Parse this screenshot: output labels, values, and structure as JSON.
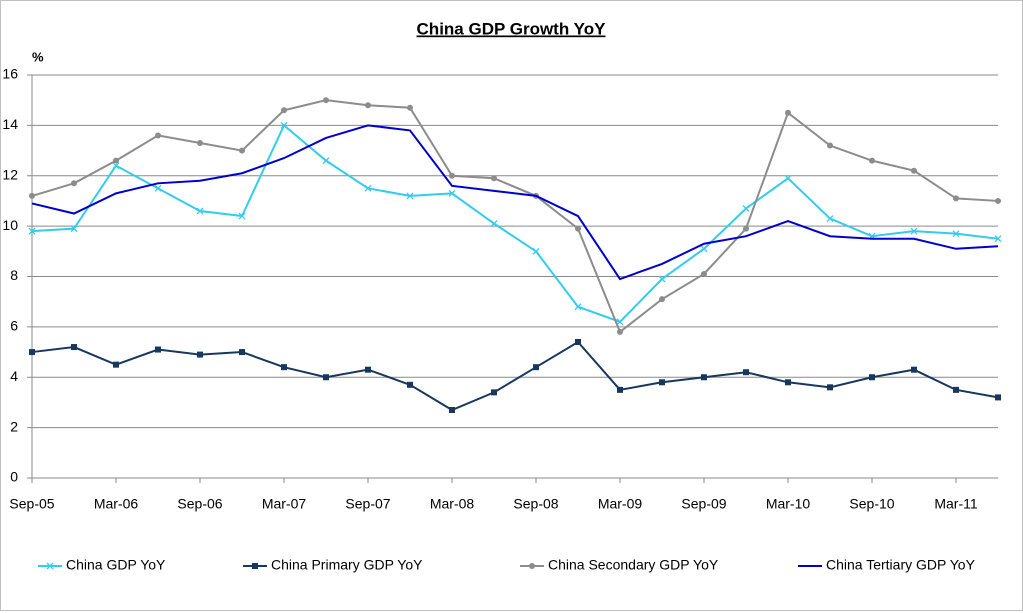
{
  "chart_data": {
    "type": "line",
    "title": "China GDP Growth YoY",
    "y_axis_label": "%",
    "categories": [
      "Sep-05",
      null,
      "Mar-06",
      null,
      "Sep-06",
      null,
      "Mar-07",
      null,
      "Sep-07",
      null,
      "Mar-08",
      null,
      "Sep-08",
      null,
      "Mar-09",
      null,
      "Sep-09",
      null,
      "Mar-10",
      null,
      "Sep-10",
      null,
      "Mar-11",
      null
    ],
    "series": [
      {
        "name": "China GDP YoY",
        "color": "#33ccee",
        "marker": "x",
        "values": [
          9.8,
          9.9,
          12.4,
          11.5,
          10.6,
          10.4,
          14.0,
          12.6,
          11.5,
          11.2,
          11.3,
          10.1,
          9.0,
          6.8,
          6.2,
          7.9,
          9.1,
          10.7,
          11.9,
          10.3,
          9.6,
          9.8,
          9.7,
          9.5
        ]
      },
      {
        "name": "China Primary GDP YoY",
        "color": "#17375e",
        "marker": "square",
        "values": [
          5.0,
          5.2,
          4.5,
          5.1,
          4.9,
          5.0,
          4.4,
          4.0,
          4.3,
          3.7,
          2.7,
          3.4,
          4.4,
          5.4,
          3.5,
          3.8,
          4.0,
          4.2,
          3.8,
          3.6,
          4.0,
          4.3,
          3.5,
          3.2
        ]
      },
      {
        "name": "China Secondary GDP YoY",
        "color": "#8c8c8c",
        "marker": "circle",
        "values": [
          11.2,
          11.7,
          12.6,
          13.6,
          13.3,
          13.0,
          14.6,
          15.0,
          14.8,
          14.7,
          12.0,
          11.9,
          11.2,
          9.9,
          5.8,
          7.1,
          8.1,
          9.9,
          14.5,
          13.2,
          12.6,
          12.2,
          11.1,
          11.0
        ]
      },
      {
        "name": "China Tertiary GDP YoY",
        "color": "#0000cc",
        "marker": "none",
        "values": [
          10.9,
          10.5,
          11.3,
          11.7,
          11.8,
          12.1,
          12.7,
          13.5,
          14.0,
          13.8,
          11.6,
          11.4,
          11.2,
          10.4,
          7.9,
          8.5,
          9.3,
          9.6,
          10.2,
          9.6,
          9.5,
          9.5,
          9.1,
          9.2
        ]
      }
    ],
    "ylim": [
      0,
      16
    ],
    "yticks": [
      0,
      2,
      4,
      6,
      8,
      10,
      12,
      14,
      16
    ],
    "grid": true,
    "legend": "bottom"
  }
}
